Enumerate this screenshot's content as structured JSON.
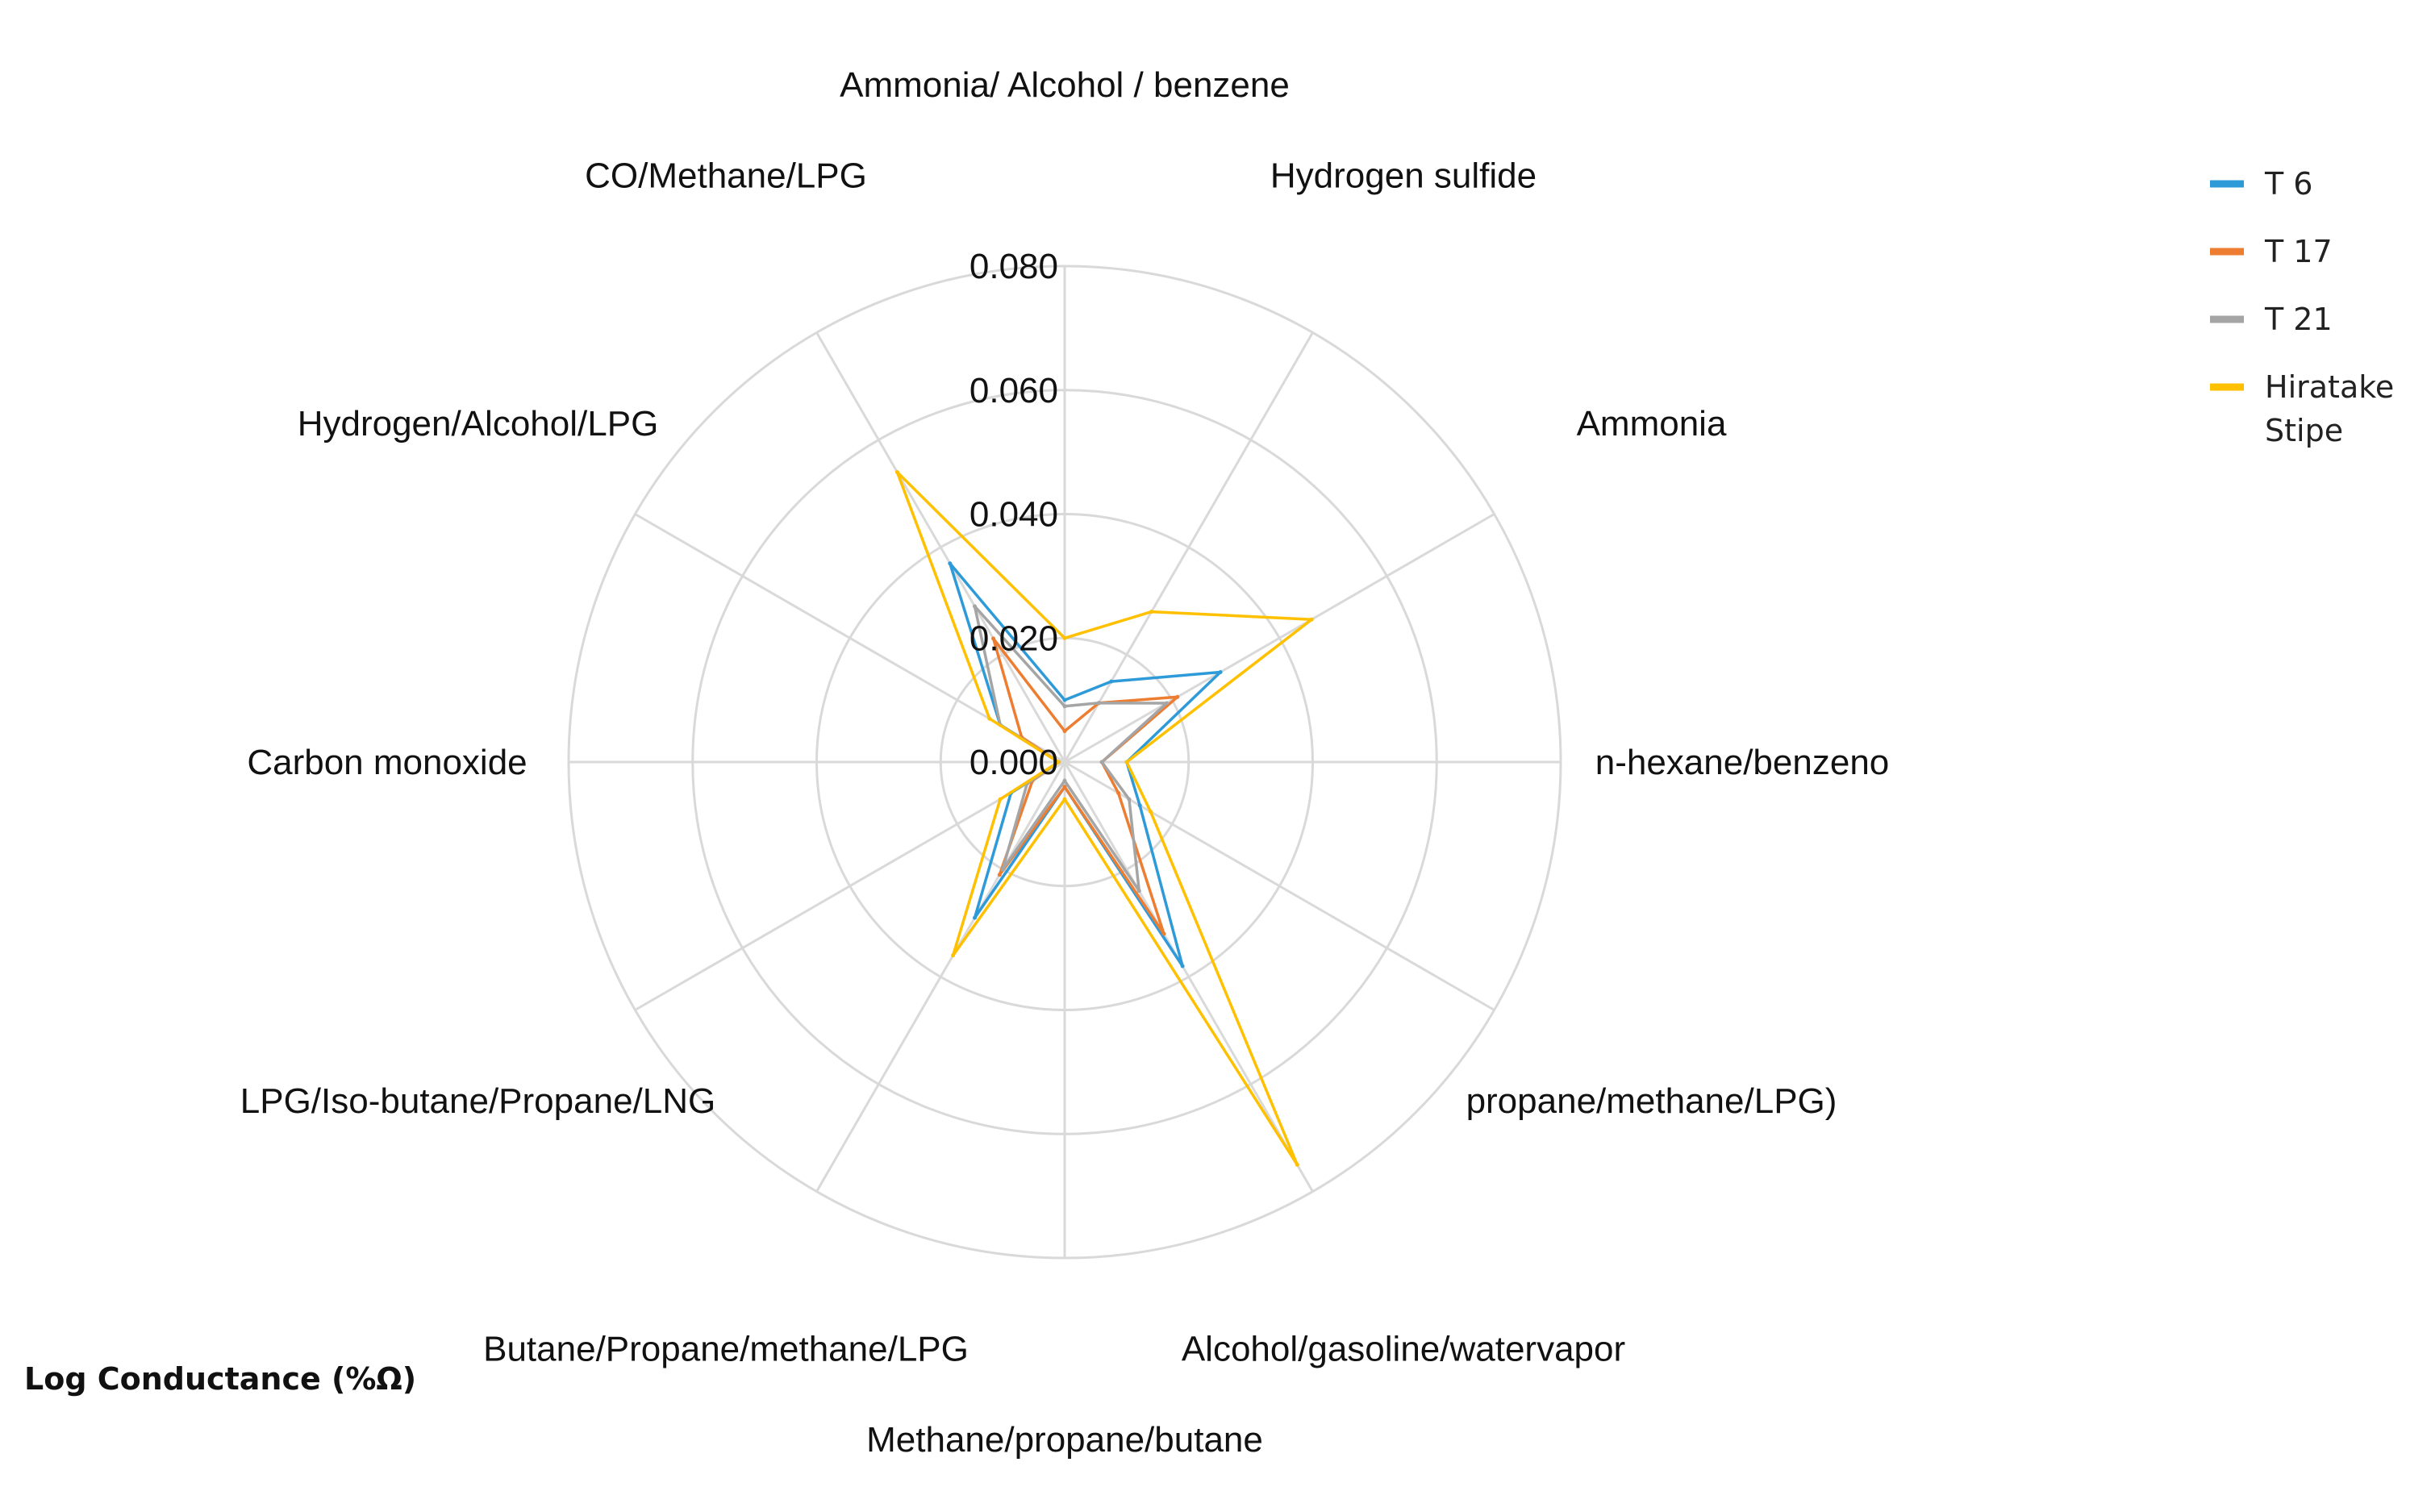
{
  "chart_data": {
    "type": "radar",
    "axes": [
      "Ammonia/ Alcohol / benzene",
      "Hydrogen sulfide",
      "Ammonia",
      "n-hexane/benzeno",
      "propane/methane/LPG)",
      "Alcohol/gasoline/watervapor",
      "Methane/propane/butane",
      "Butane/Propane/methane/LPG",
      "LPG/Iso-butane/Propane/LNG",
      "Carbon monoxide",
      "Hydrogen/Alcohol/LPG",
      "CO/Methane/LPG"
    ],
    "rmax": 0.08,
    "ticks": [
      "0.000",
      "0.020",
      "0.040",
      "0.060",
      "0.080"
    ],
    "tick_values": [
      0,
      0.02,
      0.04,
      0.06,
      0.08
    ],
    "series": [
      {
        "name": "T 6",
        "color": "#2E9BD8",
        "values": [
          0.01,
          0.015,
          0.029,
          0.01,
          0.014,
          0.038,
          0.004,
          0.029,
          0.01,
          0.001,
          0.012,
          0.037
        ]
      },
      {
        "name": "T 17",
        "color": "#ED7D31",
        "values": [
          0.005,
          0.011,
          0.021,
          0.006,
          0.01,
          0.032,
          0.004,
          0.021,
          0.006,
          0.001,
          0.008,
          0.023
        ]
      },
      {
        "name": "T 21",
        "color": "#A5A5A5",
        "values": [
          0.009,
          0.011,
          0.019,
          0.006,
          0.012,
          0.024,
          0.003,
          0.02,
          0.007,
          0.001,
          0.012,
          0.029
        ]
      },
      {
        "name": "Hiratake Stipe",
        "color": "#FFC000",
        "values": [
          0.02,
          0.028,
          0.046,
          0.01,
          0.016,
          0.075,
          0.006,
          0.036,
          0.012,
          0.001,
          0.014,
          0.054
        ]
      }
    ],
    "grid": true,
    "legend": "top-right"
  },
  "footnote": "Log Conductance (%Ω)"
}
